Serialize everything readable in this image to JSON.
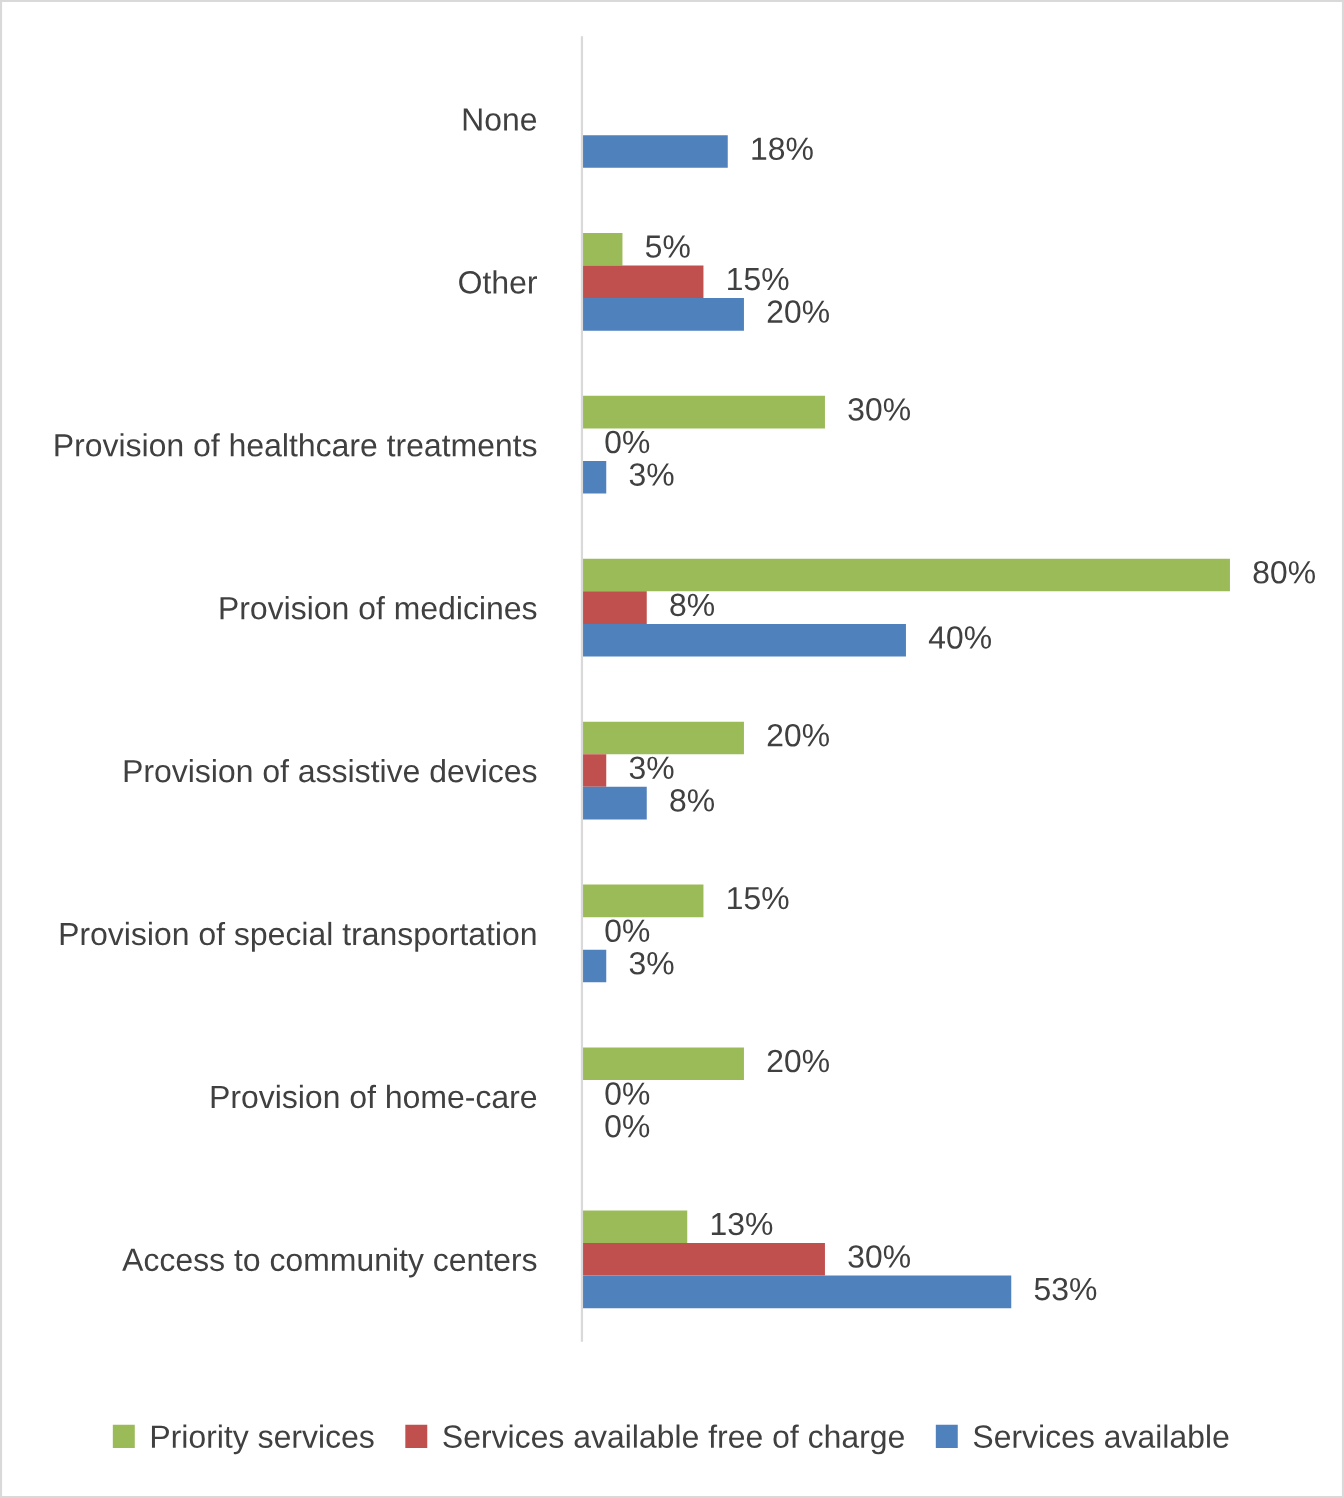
{
  "chart_data": {
    "type": "bar",
    "orientation": "horizontal",
    "legend": "bottom",
    "grid": false,
    "categories": [
      "None",
      "Other",
      "Provision of healthcare treatments",
      "Provision of medicines",
      "Provision of assistive devices",
      "Provision of special transportation",
      "Provision of home-care",
      "Access to community centers"
    ],
    "series": [
      {
        "name": "Priority services",
        "color": "#9bbb59",
        "values": [
          null,
          5,
          30,
          80,
          20,
          15,
          20,
          13
        ],
        "value_labels": [
          null,
          "5%",
          "30%",
          "80%",
          "20%",
          "15%",
          "20%",
          "13%"
        ]
      },
      {
        "name": "Services available free of charge",
        "color": "#c0504d",
        "values": [
          null,
          15,
          0,
          8,
          3,
          0,
          0,
          30
        ],
        "value_labels": [
          null,
          "15%",
          "0%",
          "8%",
          "3%",
          "0%",
          "0%",
          "30%"
        ]
      },
      {
        "name": "Services available",
        "color": "#4f81bd",
        "values": [
          18,
          20,
          3,
          40,
          8,
          3,
          0,
          53
        ],
        "value_labels": [
          "18%",
          "20%",
          "3%",
          "40%",
          "8%",
          "3%",
          "0%",
          "53%"
        ]
      }
    ]
  }
}
